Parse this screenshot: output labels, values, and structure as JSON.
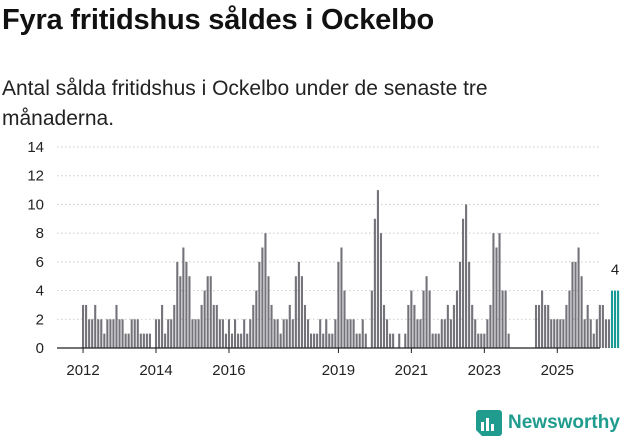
{
  "title": "Fyra fritidshus såldes i Ockelbo",
  "subtitle": "Antal sålda fritidshus i Ockelbo under de senaste tre månaderna.",
  "brand": {
    "name": "Newsworthy",
    "icon": "newsworthy-chart-icon",
    "color": "#1f9c8e"
  },
  "colors": {
    "bar": "#74737a",
    "highlight": "#1a9a96",
    "grid": "#c9c9c9",
    "axis": "#222222"
  },
  "chart_data": {
    "type": "bar",
    "title": "Fyra fritidshus såldes i Ockelbo",
    "xlabel": "",
    "ylabel": "",
    "ylim": [
      0,
      14
    ],
    "yticks": [
      0,
      2,
      4,
      6,
      8,
      10,
      12,
      14
    ],
    "xticks": [
      {
        "label": "2012",
        "index": 0
      },
      {
        "label": "2014",
        "index": 24
      },
      {
        "label": "2016",
        "index": 48
      },
      {
        "label": "2019",
        "index": 84
      },
      {
        "label": "2021",
        "index": 108
      },
      {
        "label": "2023",
        "index": 132
      },
      {
        "label": "2025",
        "index": 156
      }
    ],
    "start": "2012-01",
    "values": [
      3,
      3,
      2,
      2,
      3,
      2,
      2,
      1,
      2,
      2,
      2,
      3,
      2,
      2,
      1,
      1,
      2,
      2,
      2,
      1,
      1,
      1,
      1,
      0,
      2,
      2,
      3,
      1,
      2,
      2,
      3,
      6,
      5,
      7,
      6,
      5,
      2,
      2,
      2,
      3,
      4,
      5,
      5,
      3,
      3,
      2,
      2,
      1,
      2,
      1,
      2,
      1,
      1,
      2,
      1,
      2,
      3,
      4,
      6,
      7,
      8,
      5,
      3,
      2,
      2,
      1,
      2,
      2,
      3,
      2,
      5,
      6,
      5,
      3,
      2,
      1,
      1,
      1,
      2,
      1,
      2,
      1,
      1,
      2,
      6,
      7,
      4,
      2,
      2,
      2,
      1,
      1,
      2,
      1,
      0,
      4,
      9,
      11,
      8,
      3,
      2,
      1,
      1,
      0,
      1,
      0,
      1,
      3,
      4,
      3,
      2,
      2,
      4,
      5,
      4,
      1,
      1,
      1,
      2,
      2,
      3,
      2,
      3,
      4,
      6,
      9,
      10,
      6,
      3,
      2,
      1,
      1,
      1,
      2,
      3,
      8,
      7,
      8,
      4,
      4,
      1,
      0,
      0,
      0,
      0,
      0,
      0,
      0,
      0,
      3,
      3,
      4,
      3,
      3,
      2,
      2,
      2,
      2,
      2,
      3,
      4,
      6,
      6,
      7,
      5,
      2,
      3,
      2,
      1,
      2,
      3,
      3,
      2,
      2,
      4,
      4,
      4
    ],
    "highlight_count": 3,
    "last_label": "4"
  }
}
